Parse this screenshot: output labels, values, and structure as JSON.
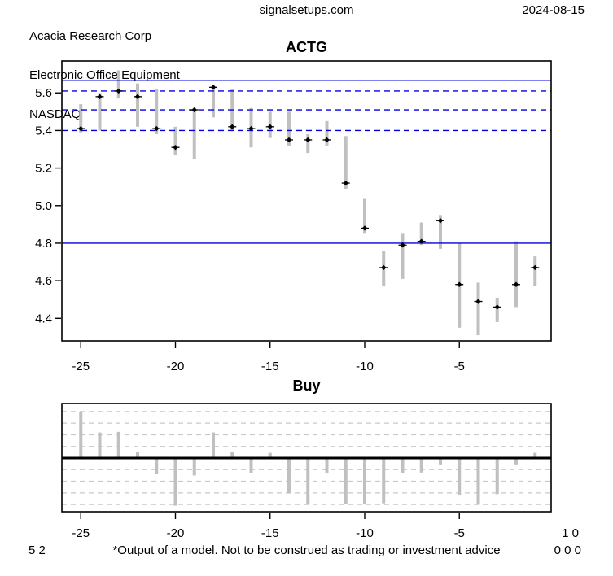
{
  "header": {
    "company": "Acacia Research Corp",
    "industry": "Electronic Office Equipment",
    "exchange": "NASDAQ",
    "site": "signalsetups.com",
    "date": "2024-08-15"
  },
  "footer": {
    "left_numbers": "5 2",
    "disclaimer": "*Output of a model. Not to be construed as trading or investment advice",
    "right_numbers_top": "1 0",
    "right_numbers_bottom": "0 0 0"
  },
  "colors": {
    "line_blue": "#0000dd",
    "bar_gray": "#c0c0c0",
    "grid_gray": "#c9c9c9",
    "marker_black": "#000000",
    "axis_black": "#000000"
  },
  "chart_data": [
    {
      "id": "price",
      "type": "hilo-close",
      "title": "ACTG",
      "xlabel": "",
      "ylabel": "",
      "xlim": [
        -26,
        -0.15
      ],
      "ylim": [
        4.28,
        5.77
      ],
      "xticks": [
        -25,
        -20,
        -15,
        -10,
        -5
      ],
      "yticks": [
        5.6,
        5.4,
        5.2,
        5.0,
        4.8,
        4.6,
        4.4
      ],
      "hlines": [
        {
          "y": 5.665,
          "style": "solid"
        },
        {
          "y": 4.8,
          "style": "solid"
        },
        {
          "y": 5.61,
          "style": "dashed"
        },
        {
          "y": 5.51,
          "style": "dashed"
        },
        {
          "y": 5.4,
          "style": "dashed"
        }
      ],
      "bars": [
        {
          "x": -25,
          "low": 5.39,
          "high": 5.54,
          "close": 5.41
        },
        {
          "x": -24,
          "low": 5.4,
          "high": 5.6,
          "close": 5.58
        },
        {
          "x": -23,
          "low": 5.57,
          "high": 5.72,
          "close": 5.61
        },
        {
          "x": -22,
          "low": 5.42,
          "high": 5.65,
          "close": 5.58
        },
        {
          "x": -21,
          "low": 5.38,
          "high": 5.62,
          "close": 5.41
        },
        {
          "x": -20,
          "low": 5.27,
          "high": 5.42,
          "close": 5.31
        },
        {
          "x": -19,
          "low": 5.25,
          "high": 5.52,
          "close": 5.51
        },
        {
          "x": -18,
          "low": 5.47,
          "high": 5.64,
          "close": 5.63
        },
        {
          "x": -17,
          "low": 5.4,
          "high": 5.62,
          "close": 5.42
        },
        {
          "x": -16,
          "low": 5.31,
          "high": 5.52,
          "close": 5.41
        },
        {
          "x": -15,
          "low": 5.36,
          "high": 5.5,
          "close": 5.42
        },
        {
          "x": -14,
          "low": 5.32,
          "high": 5.5,
          "close": 5.35
        },
        {
          "x": -13,
          "low": 5.28,
          "high": 5.38,
          "close": 5.35
        },
        {
          "x": -12,
          "low": 5.32,
          "high": 5.45,
          "close": 5.35
        },
        {
          "x": -11,
          "low": 5.09,
          "high": 5.37,
          "close": 5.12
        },
        {
          "x": -10,
          "low": 4.85,
          "high": 5.04,
          "close": 4.88
        },
        {
          "x": -9,
          "low": 4.57,
          "high": 4.76,
          "close": 4.67
        },
        {
          "x": -8,
          "low": 4.61,
          "high": 4.85,
          "close": 4.79
        },
        {
          "x": -7,
          "low": 4.79,
          "high": 4.91,
          "close": 4.81
        },
        {
          "x": -6,
          "low": 4.77,
          "high": 4.95,
          "close": 4.92
        },
        {
          "x": -5,
          "low": 4.35,
          "high": 4.8,
          "close": 4.58
        },
        {
          "x": -4,
          "low": 4.31,
          "high": 4.59,
          "close": 4.49
        },
        {
          "x": -3,
          "low": 4.38,
          "high": 4.51,
          "close": 4.46
        },
        {
          "x": -2,
          "low": 4.46,
          "high": 4.81,
          "close": 4.58
        },
        {
          "x": -1,
          "low": 4.57,
          "high": 4.73,
          "close": 4.67
        }
      ]
    },
    {
      "id": "buy",
      "type": "bar",
      "title": "Buy",
      "xlabel": "",
      "ylabel": "",
      "xlim": [
        -26,
        -0.15
      ],
      "ylim": [
        -4.62,
        4.69
      ],
      "xticks": [
        -25,
        -20,
        -15,
        -10,
        -5
      ],
      "grid": "horizontal-dashed",
      "grid_step": 1,
      "zero_line": true,
      "x": [
        -25,
        -24,
        -23,
        -22,
        -21,
        -20,
        -19,
        -18,
        -17,
        -16,
        -15,
        -14,
        -13,
        -12,
        -11,
        -10,
        -9,
        -8,
        -7,
        -6,
        -5,
        -4,
        -3,
        -2,
        -1
      ],
      "values": [
        3.95,
        2.2,
        2.25,
        0.55,
        -1.4,
        -4.1,
        -1.5,
        2.2,
        0.55,
        -1.3,
        0.45,
        -3.05,
        -4.0,
        -1.3,
        -3.95,
        -4.0,
        -3.9,
        -1.3,
        -1.25,
        -0.55,
        -3.15,
        -4.0,
        -3.1,
        -0.55,
        0.45
      ]
    }
  ]
}
